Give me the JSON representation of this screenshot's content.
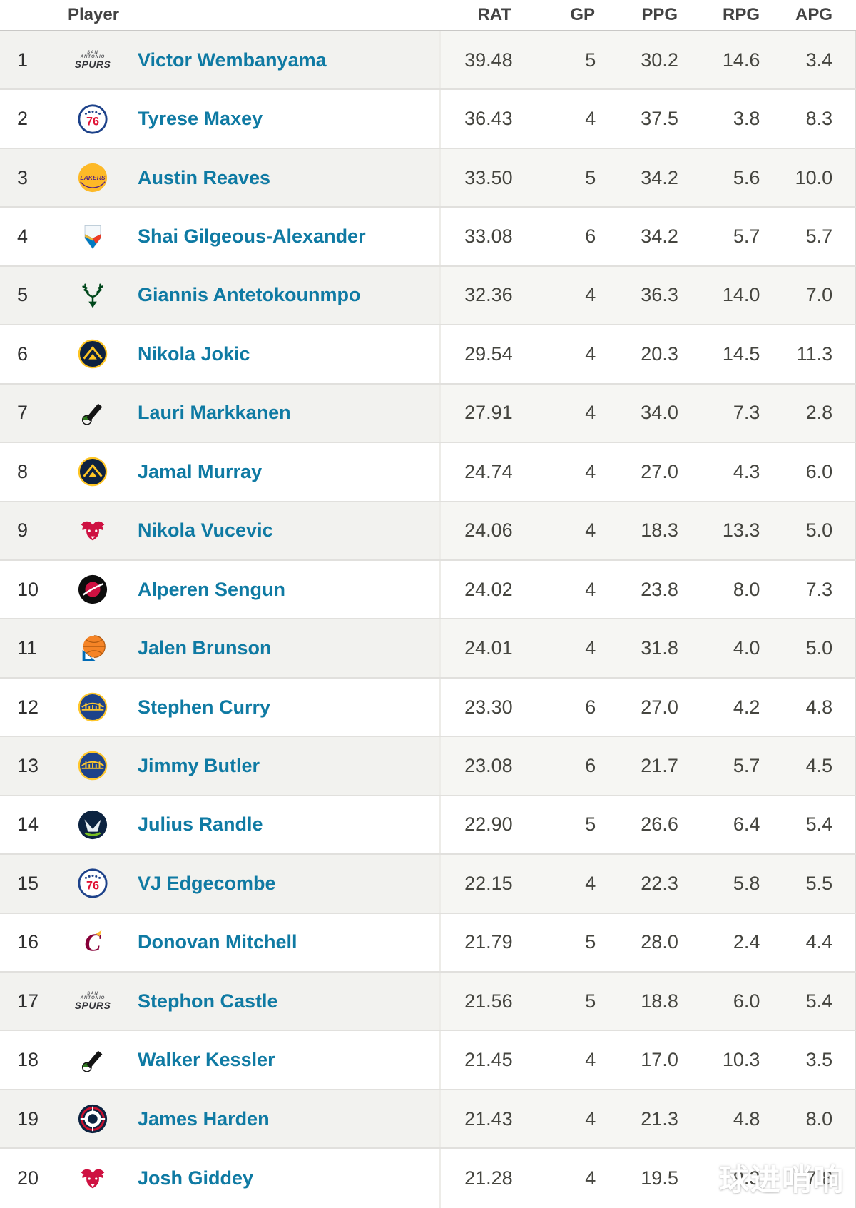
{
  "watermark": {
    "text": "球进哨响",
    "color": "#ffffff"
  },
  "table": {
    "header": {
      "player_label": "Player",
      "stat_labels": [
        "RAT",
        "GP",
        "PPG",
        "RPG",
        "APG"
      ]
    },
    "colors": {
      "link": "#0f7aa3",
      "stat_text": "#45453f",
      "rank_text": "#303030",
      "stripe_left": "#f2f2ef",
      "stripe_right": "#f6f6f3",
      "row_border": "#e1e0dd",
      "header_border": "#c9c8c6"
    },
    "teams": {
      "spurs": {
        "name": "San Antonio Spurs",
        "top": "SAN ANTONIO",
        "main": "SPURS",
        "fg": "#323338"
      },
      "sixers": {
        "name": "Philadelphia 76ers",
        "blue": "#1d428a",
        "red": "#e01234"
      },
      "lakers": {
        "name": "Los Angeles Lakers",
        "gold": "#fdb927",
        "purple": "#552583"
      },
      "thunder": {
        "name": "Oklahoma City Thunder",
        "blue": "#007ac1",
        "orange": "#ef3b24",
        "yellow": "#fdbb30"
      },
      "bucks": {
        "name": "Milwaukee Bucks",
        "green": "#00471b"
      },
      "nuggets": {
        "name": "Denver Nuggets",
        "navy": "#0e2240",
        "gold": "#fec524"
      },
      "jazz": {
        "name": "Utah Jazz",
        "yellow": "#f9a01b",
        "green": "#2f7a1f",
        "black": "#141414"
      },
      "bulls": {
        "name": "Chicago Bulls",
        "red": "#ce1141"
      },
      "rockets": {
        "name": "Houston Rockets",
        "black": "#0d0d0d",
        "red": "#ce1141"
      },
      "knicks": {
        "name": "New York Knicks",
        "orange": "#f58426",
        "blue": "#006bb6",
        "line": "#b35b10"
      },
      "warriors": {
        "name": "Golden State Warriors",
        "blue": "#1d428a",
        "gold": "#ffc72c"
      },
      "wolves": {
        "name": "Minnesota Timberwolves",
        "navy": "#0c2340",
        "green": "#78be20",
        "light": "#e8eef2"
      },
      "cavs": {
        "name": "Cleveland Cavaliers",
        "wine": "#860038",
        "gold": "#fdbb30"
      },
      "clippers": {
        "name": "LA Clippers",
        "navy": "#0c2340",
        "red": "#c8102e"
      }
    },
    "rows": [
      {
        "rank": "1",
        "team": "spurs",
        "player": "Victor Wembanyama",
        "rat": "39.48",
        "gp": "5",
        "ppg": "30.2",
        "rpg": "14.6",
        "apg": "3.4"
      },
      {
        "rank": "2",
        "team": "sixers",
        "player": "Tyrese Maxey",
        "rat": "36.43",
        "gp": "4",
        "ppg": "37.5",
        "rpg": "3.8",
        "apg": "8.3"
      },
      {
        "rank": "3",
        "team": "lakers",
        "player": "Austin Reaves",
        "rat": "33.50",
        "gp": "5",
        "ppg": "34.2",
        "rpg": "5.6",
        "apg": "10.0"
      },
      {
        "rank": "4",
        "team": "thunder",
        "player": "Shai Gilgeous-Alexander",
        "rat": "33.08",
        "gp": "6",
        "ppg": "34.2",
        "rpg": "5.7",
        "apg": "5.7"
      },
      {
        "rank": "5",
        "team": "bucks",
        "player": "Giannis Antetokounmpo",
        "rat": "32.36",
        "gp": "4",
        "ppg": "36.3",
        "rpg": "14.0",
        "apg": "7.0"
      },
      {
        "rank": "6",
        "team": "nuggets",
        "player": "Nikola Jokic",
        "rat": "29.54",
        "gp": "4",
        "ppg": "20.3",
        "rpg": "14.5",
        "apg": "11.3"
      },
      {
        "rank": "7",
        "team": "jazz",
        "player": "Lauri Markkanen",
        "rat": "27.91",
        "gp": "4",
        "ppg": "34.0",
        "rpg": "7.3",
        "apg": "2.8"
      },
      {
        "rank": "8",
        "team": "nuggets",
        "player": "Jamal Murray",
        "rat": "24.74",
        "gp": "4",
        "ppg": "27.0",
        "rpg": "4.3",
        "apg": "6.0"
      },
      {
        "rank": "9",
        "team": "bulls",
        "player": "Nikola Vucevic",
        "rat": "24.06",
        "gp": "4",
        "ppg": "18.3",
        "rpg": "13.3",
        "apg": "5.0"
      },
      {
        "rank": "10",
        "team": "rockets",
        "player": "Alperen Sengun",
        "rat": "24.02",
        "gp": "4",
        "ppg": "23.8",
        "rpg": "8.0",
        "apg": "7.3"
      },
      {
        "rank": "11",
        "team": "knicks",
        "player": "Jalen Brunson",
        "rat": "24.01",
        "gp": "4",
        "ppg": "31.8",
        "rpg": "4.0",
        "apg": "5.0"
      },
      {
        "rank": "12",
        "team": "warriors",
        "player": "Stephen Curry",
        "rat": "23.30",
        "gp": "6",
        "ppg": "27.0",
        "rpg": "4.2",
        "apg": "4.8"
      },
      {
        "rank": "13",
        "team": "warriors",
        "player": "Jimmy Butler",
        "rat": "23.08",
        "gp": "6",
        "ppg": "21.7",
        "rpg": "5.7",
        "apg": "4.5"
      },
      {
        "rank": "14",
        "team": "wolves",
        "player": "Julius Randle",
        "rat": "22.90",
        "gp": "5",
        "ppg": "26.6",
        "rpg": "6.4",
        "apg": "5.4"
      },
      {
        "rank": "15",
        "team": "sixers",
        "player": "VJ Edgecombe",
        "rat": "22.15",
        "gp": "4",
        "ppg": "22.3",
        "rpg": "5.8",
        "apg": "5.5"
      },
      {
        "rank": "16",
        "team": "cavs",
        "player": "Donovan Mitchell",
        "rat": "21.79",
        "gp": "5",
        "ppg": "28.0",
        "rpg": "2.4",
        "apg": "4.4"
      },
      {
        "rank": "17",
        "team": "spurs",
        "player": "Stephon Castle",
        "rat": "21.56",
        "gp": "5",
        "ppg": "18.8",
        "rpg": "6.0",
        "apg": "5.4"
      },
      {
        "rank": "18",
        "team": "jazz",
        "player": "Walker Kessler",
        "rat": "21.45",
        "gp": "4",
        "ppg": "17.0",
        "rpg": "10.3",
        "apg": "3.5"
      },
      {
        "rank": "19",
        "team": "clippers",
        "player": "James Harden",
        "rat": "21.43",
        "gp": "4",
        "ppg": "21.3",
        "rpg": "4.8",
        "apg": "8.0"
      },
      {
        "rank": "20",
        "team": "bulls",
        "player": "Josh Giddey",
        "rat": "21.28",
        "gp": "4",
        "ppg": "19.5",
        "rpg": "9.3",
        "apg": "7.8"
      }
    ]
  }
}
